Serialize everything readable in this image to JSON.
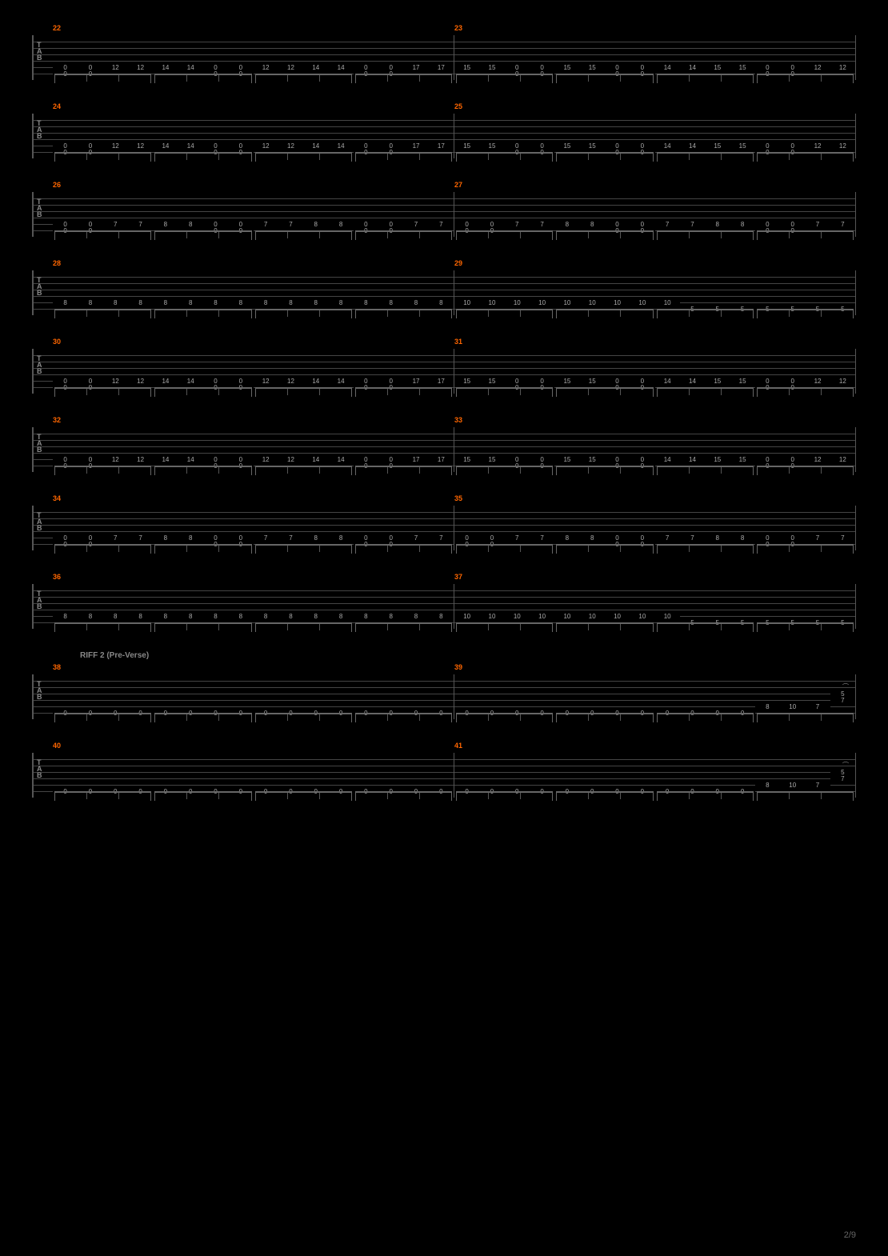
{
  "page_number": "2/9",
  "colors": {
    "bg": "#000000",
    "bar_number": "#ff6600",
    "staff_line": "#444444",
    "note_text": "#aaaaaa",
    "section_text": "#888888"
  },
  "tab_letters": [
    "T",
    "A",
    "B"
  ],
  "staff_lines_count": 6,
  "systems": [
    {
      "bars": [
        {
          "num": "22",
          "string5": [
            "0",
            "0",
            "12",
            "12",
            "14",
            "14",
            "0",
            "0",
            "12",
            "12",
            "14",
            "14",
            "0",
            "0",
            "17",
            "17"
          ],
          "string6": [
            "0",
            "0",
            "",
            "",
            "",
            "",
            "0",
            "0",
            "",
            "",
            "",
            "",
            "0",
            "0",
            "",
            ""
          ]
        },
        {
          "num": "23",
          "string5": [
            "15",
            "15",
            "0",
            "0",
            "15",
            "15",
            "0",
            "0",
            "14",
            "14",
            "15",
            "15",
            "0",
            "0",
            "12",
            "12"
          ],
          "string6": [
            "",
            "",
            "0",
            "0",
            "",
            "",
            "0",
            "0",
            "",
            "",
            "",
            "",
            "0",
            "0",
            "",
            ""
          ]
        }
      ]
    },
    {
      "bars": [
        {
          "num": "24",
          "string5": [
            "0",
            "0",
            "12",
            "12",
            "14",
            "14",
            "0",
            "0",
            "12",
            "12",
            "14",
            "14",
            "0",
            "0",
            "17",
            "17"
          ],
          "string6": [
            "0",
            "0",
            "",
            "",
            "",
            "",
            "0",
            "0",
            "",
            "",
            "",
            "",
            "0",
            "0",
            "",
            ""
          ]
        },
        {
          "num": "25",
          "string5": [
            "15",
            "15",
            "0",
            "0",
            "15",
            "15",
            "0",
            "0",
            "14",
            "14",
            "15",
            "15",
            "0",
            "0",
            "12",
            "12"
          ],
          "string6": [
            "",
            "",
            "0",
            "0",
            "",
            "",
            "0",
            "0",
            "",
            "",
            "",
            "",
            "0",
            "0",
            "",
            ""
          ]
        }
      ]
    },
    {
      "bars": [
        {
          "num": "26",
          "string5": [
            "0",
            "0",
            "7",
            "7",
            "8",
            "8",
            "0",
            "0",
            "7",
            "7",
            "8",
            "8",
            "0",
            "0",
            "7",
            "7"
          ],
          "string6": [
            "0",
            "0",
            "",
            "",
            "",
            "",
            "0",
            "0",
            "",
            "",
            "",
            "",
            "0",
            "0",
            "",
            ""
          ]
        },
        {
          "num": "27",
          "string5": [
            "0",
            "0",
            "7",
            "7",
            "8",
            "8",
            "0",
            "0",
            "7",
            "7",
            "8",
            "8",
            "0",
            "0",
            "7",
            "7"
          ],
          "string6": [
            "0",
            "0",
            "",
            "",
            "",
            "",
            "0",
            "0",
            "",
            "",
            "",
            "",
            "0",
            "0",
            "",
            ""
          ]
        }
      ]
    },
    {
      "bars": [
        {
          "num": "28",
          "string5": [
            "8",
            "8",
            "8",
            "8",
            "8",
            "8",
            "8",
            "8",
            "8",
            "8",
            "8",
            "8",
            "8",
            "8",
            "8",
            "8"
          ],
          "string6": [
            "",
            "",
            "",
            "",
            "",
            "",
            "",
            "",
            "",
            "",
            "",
            "",
            "",
            "",
            "",
            ""
          ]
        },
        {
          "num": "29",
          "string5": [
            "10",
            "10",
            "10",
            "10",
            "10",
            "10",
            "10",
            "10",
            "10",
            "",
            "",
            "",
            "",
            "",
            "",
            ""
          ],
          "string6": [
            "",
            "",
            "",
            "",
            "",
            "",
            "",
            "",
            "",
            "5",
            "5",
            "5",
            "5",
            "5",
            "5",
            "5"
          ]
        }
      ]
    },
    {
      "bars": [
        {
          "num": "30",
          "string5": [
            "0",
            "0",
            "12",
            "12",
            "14",
            "14",
            "0",
            "0",
            "12",
            "12",
            "14",
            "14",
            "0",
            "0",
            "17",
            "17"
          ],
          "string6": [
            "0",
            "0",
            "",
            "",
            "",
            "",
            "0",
            "0",
            "",
            "",
            "",
            "",
            "0",
            "0",
            "",
            ""
          ]
        },
        {
          "num": "31",
          "string5": [
            "15",
            "15",
            "0",
            "0",
            "15",
            "15",
            "0",
            "0",
            "14",
            "14",
            "15",
            "15",
            "0",
            "0",
            "12",
            "12"
          ],
          "string6": [
            "",
            "",
            "0",
            "0",
            "",
            "",
            "0",
            "0",
            "",
            "",
            "",
            "",
            "0",
            "0",
            "",
            ""
          ]
        }
      ]
    },
    {
      "bars": [
        {
          "num": "32",
          "string5": [
            "0",
            "0",
            "12",
            "12",
            "14",
            "14",
            "0",
            "0",
            "12",
            "12",
            "14",
            "14",
            "0",
            "0",
            "17",
            "17"
          ],
          "string6": [
            "0",
            "0",
            "",
            "",
            "",
            "",
            "0",
            "0",
            "",
            "",
            "",
            "",
            "0",
            "0",
            "",
            ""
          ]
        },
        {
          "num": "33",
          "string5": [
            "15",
            "15",
            "0",
            "0",
            "15",
            "15",
            "0",
            "0",
            "14",
            "14",
            "15",
            "15",
            "0",
            "0",
            "12",
            "12"
          ],
          "string6": [
            "",
            "",
            "0",
            "0",
            "",
            "",
            "0",
            "0",
            "",
            "",
            "",
            "",
            "0",
            "0",
            "",
            ""
          ]
        }
      ]
    },
    {
      "bars": [
        {
          "num": "34",
          "string5": [
            "0",
            "0",
            "7",
            "7",
            "8",
            "8",
            "0",
            "0",
            "7",
            "7",
            "8",
            "8",
            "0",
            "0",
            "7",
            "7"
          ],
          "string6": [
            "0",
            "0",
            "",
            "",
            "",
            "",
            "0",
            "0",
            "",
            "",
            "",
            "",
            "0",
            "0",
            "",
            ""
          ]
        },
        {
          "num": "35",
          "string5": [
            "0",
            "0",
            "7",
            "7",
            "8",
            "8",
            "0",
            "0",
            "7",
            "7",
            "8",
            "8",
            "0",
            "0",
            "7",
            "7"
          ],
          "string6": [
            "0",
            "0",
            "",
            "",
            "",
            "",
            "0",
            "0",
            "",
            "",
            "",
            "",
            "0",
            "0",
            "",
            ""
          ]
        }
      ]
    },
    {
      "bars": [
        {
          "num": "36",
          "string5": [
            "8",
            "8",
            "8",
            "8",
            "8",
            "8",
            "8",
            "8",
            "8",
            "8",
            "8",
            "8",
            "8",
            "8",
            "8",
            "8"
          ],
          "string6": [
            "",
            "",
            "",
            "",
            "",
            "",
            "",
            "",
            "",
            "",
            "",
            "",
            "",
            "",
            "",
            ""
          ]
        },
        {
          "num": "37",
          "string5": [
            "10",
            "10",
            "10",
            "10",
            "10",
            "10",
            "10",
            "10",
            "10",
            "",
            "",
            "",
            "",
            "",
            "",
            ""
          ],
          "string6": [
            "",
            "",
            "",
            "",
            "",
            "",
            "",
            "",
            "",
            "5",
            "5",
            "5",
            "5",
            "5",
            "5",
            "5"
          ]
        }
      ]
    },
    {
      "section_label": "RIFF 2 (Pre-Verse)",
      "bars": [
        {
          "num": "38",
          "string6": [
            "0",
            "0",
            "0",
            "0",
            "0",
            "0",
            "0",
            "0",
            "0",
            "0",
            "0",
            "0",
            "0",
            "0",
            "0",
            "0"
          ],
          "string5": [
            "",
            "",
            "",
            "",
            "",
            "",
            "",
            "",
            "",
            "",
            "",
            "",
            "",
            "",
            "",
            ""
          ]
        },
        {
          "num": "39",
          "string6": [
            "0",
            "0",
            "0",
            "0",
            "0",
            "0",
            "0",
            "0",
            "0",
            "0",
            "0",
            "0",
            "",
            "",
            "",
            ""
          ],
          "string5": [
            "",
            "",
            "",
            "",
            "",
            "",
            "",
            "",
            "",
            "",
            "",
            "",
            "8",
            "10",
            "7",
            ""
          ],
          "string4": [
            "",
            "",
            "",
            "",
            "",
            "",
            "",
            "",
            "",
            "",
            "",
            "",
            "",
            "",
            "",
            "7"
          ],
          "string3": [
            "",
            "",
            "",
            "",
            "",
            "",
            "",
            "",
            "",
            "",
            "",
            "",
            "",
            "",
            "",
            "5"
          ],
          "has_tie": true
        }
      ]
    },
    {
      "bars": [
        {
          "num": "40",
          "string6": [
            "0",
            "0",
            "0",
            "0",
            "0",
            "0",
            "0",
            "0",
            "0",
            "0",
            "0",
            "0",
            "0",
            "0",
            "0",
            "0"
          ],
          "string5": [
            "",
            "",
            "",
            "",
            "",
            "",
            "",
            "",
            "",
            "",
            "",
            "",
            "",
            "",
            "",
            ""
          ]
        },
        {
          "num": "41",
          "string6": [
            "0",
            "0",
            "0",
            "0",
            "0",
            "0",
            "0",
            "0",
            "0",
            "0",
            "0",
            "0",
            "",
            "",
            "",
            ""
          ],
          "string5": [
            "",
            "",
            "",
            "",
            "",
            "",
            "",
            "",
            "",
            "",
            "",
            "",
            "8",
            "10",
            "7",
            ""
          ],
          "string4": [
            "",
            "",
            "",
            "",
            "",
            "",
            "",
            "",
            "",
            "",
            "",
            "",
            "",
            "",
            "",
            "7"
          ],
          "string3": [
            "",
            "",
            "",
            "",
            "",
            "",
            "",
            "",
            "",
            "",
            "",
            "",
            "",
            "",
            "",
            "5"
          ],
          "has_tie": true
        }
      ]
    }
  ]
}
